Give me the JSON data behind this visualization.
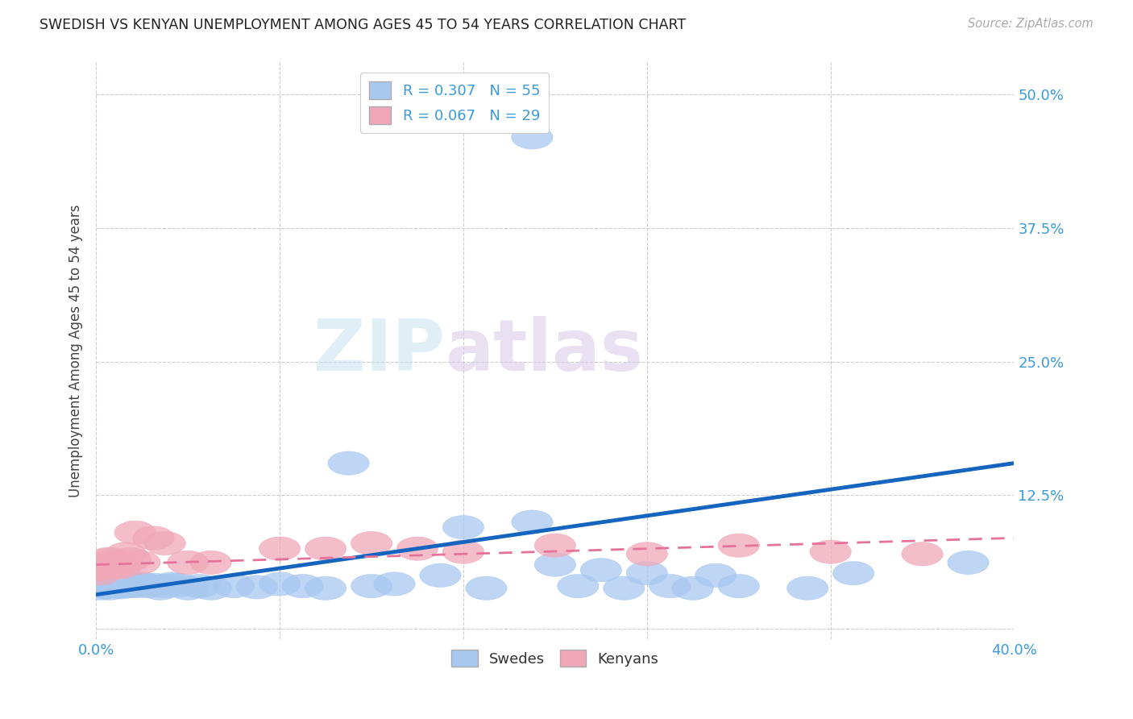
{
  "title": "SWEDISH VS KENYAN UNEMPLOYMENT AMONG AGES 45 TO 54 YEARS CORRELATION CHART",
  "source": "Source: ZipAtlas.com",
  "ylabel": "Unemployment Among Ages 45 to 54 years",
  "xlim": [
    0.0,
    0.4
  ],
  "ylim": [
    -0.01,
    0.53
  ],
  "yticks": [
    0.0,
    0.125,
    0.25,
    0.375,
    0.5
  ],
  "ytick_labels": [
    "",
    "12.5%",
    "25.0%",
    "37.5%",
    "50.0%"
  ],
  "xticks": [
    0.0,
    0.08,
    0.16,
    0.24,
    0.32,
    0.4
  ],
  "xtick_labels": [
    "0.0%",
    "",
    "",
    "",
    "",
    "40.0%"
  ],
  "swedes_R": "0.307",
  "swedes_N": "55",
  "kenyans_R": "0.067",
  "kenyans_N": "29",
  "swedes_color": "#a8c8f0",
  "kenyans_color": "#f0a8b8",
  "swedes_line_color": "#1565c0",
  "kenyans_line_color": "#e57399",
  "background_color": "#ffffff",
  "grid_color": "#cccccc",
  "swedes_x": [
    0.001,
    0.002,
    0.003,
    0.004,
    0.005,
    0.005,
    0.006,
    0.007,
    0.008,
    0.009,
    0.01,
    0.011,
    0.012,
    0.013,
    0.014,
    0.015,
    0.016,
    0.017,
    0.018,
    0.019,
    0.02,
    0.022,
    0.025,
    0.028,
    0.03,
    0.033,
    0.036,
    0.04,
    0.045,
    0.05,
    0.06,
    0.07,
    0.08,
    0.09,
    0.1,
    0.11,
    0.12,
    0.13,
    0.15,
    0.16,
    0.17,
    0.19,
    0.2,
    0.21,
    0.22,
    0.23,
    0.24,
    0.25,
    0.26,
    0.27,
    0.28,
    0.31,
    0.33,
    0.38,
    0.19
  ],
  "swedes_y": [
    0.04,
    0.038,
    0.042,
    0.041,
    0.044,
    0.04,
    0.038,
    0.042,
    0.043,
    0.041,
    0.04,
    0.039,
    0.041,
    0.043,
    0.04,
    0.042,
    0.041,
    0.04,
    0.042,
    0.041,
    0.042,
    0.04,
    0.041,
    0.038,
    0.04,
    0.042,
    0.041,
    0.038,
    0.04,
    0.038,
    0.04,
    0.039,
    0.042,
    0.04,
    0.038,
    0.155,
    0.04,
    0.042,
    0.05,
    0.095,
    0.038,
    0.1,
    0.06,
    0.04,
    0.055,
    0.038,
    0.052,
    0.04,
    0.038,
    0.05,
    0.04,
    0.038,
    0.052,
    0.062,
    0.46
  ],
  "kenyans_x": [
    0.001,
    0.002,
    0.003,
    0.004,
    0.005,
    0.006,
    0.007,
    0.008,
    0.009,
    0.01,
    0.011,
    0.013,
    0.015,
    0.017,
    0.019,
    0.025,
    0.03,
    0.04,
    0.08,
    0.1,
    0.12,
    0.14,
    0.16,
    0.2,
    0.24,
    0.28,
    0.32,
    0.36,
    0.05
  ],
  "kenyans_y": [
    0.055,
    0.052,
    0.058,
    0.06,
    0.065,
    0.06,
    0.065,
    0.058,
    0.06,
    0.062,
    0.058,
    0.07,
    0.065,
    0.09,
    0.062,
    0.085,
    0.08,
    0.062,
    0.075,
    0.075,
    0.08,
    0.075,
    0.072,
    0.078,
    0.07,
    0.078,
    0.072,
    0.07,
    0.062
  ],
  "sw_line_x0": 0.0,
  "sw_line_y0": 0.032,
  "sw_line_x1": 0.4,
  "sw_line_y1": 0.155,
  "ke_line_x0": 0.0,
  "ke_line_y0": 0.06,
  "ke_line_x1": 0.4,
  "ke_line_y1": 0.085
}
